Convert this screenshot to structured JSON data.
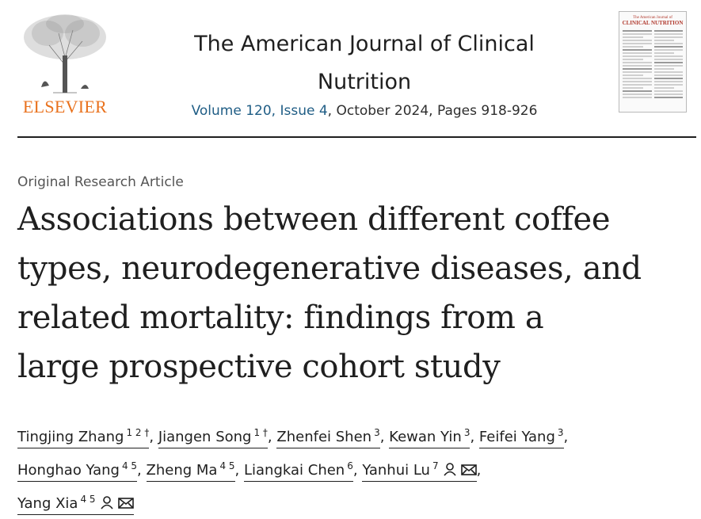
{
  "header": {
    "publisher": "ELSEVIER",
    "journal_title_line1": "The American Journal of Clinical",
    "journal_title_line2": "Nutrition",
    "volume_issue": "Volume 120, Issue 4",
    "date_pages": ", October 2024, Pages 918-926",
    "cover_small": "The American Journal of",
    "cover_name": "CLINICAL NUTRITION"
  },
  "article": {
    "type": "Original Research Article",
    "title_lines": [
      "Associations between different coffee",
      "types, neurodegenerative diseases, and",
      "related mortality: findings from a",
      "large prospective cohort study"
    ]
  },
  "authors": [
    {
      "name": "Tingjing Zhang",
      "sup": "1 2 †",
      "sep": ","
    },
    {
      "name": "Jiangen Song",
      "sup": "1 †",
      "sep": ","
    },
    {
      "name": "Zhenfei Shen",
      "sup": "3",
      "sep": ","
    },
    {
      "name": "Kewan Yin",
      "sup": "3",
      "sep": ","
    },
    {
      "name": "Feifei Yang",
      "sup": "3",
      "sep": ","
    },
    {
      "name": "Honghao Yang",
      "sup": "4 5",
      "sep": ","
    },
    {
      "name": "Zheng Ma",
      "sup": "4 5",
      "sep": ","
    },
    {
      "name": "Liangkai Chen",
      "sup": "6",
      "sep": ","
    },
    {
      "name": "Yanhui Lu",
      "sup": "7",
      "sep": ",",
      "icons": [
        "person-icon",
        "mail-icon"
      ]
    },
    {
      "name": "Yang Xia",
      "sup": "4 5",
      "sep": "",
      "icons": [
        "person-icon",
        "mail-icon"
      ]
    }
  ],
  "colors": {
    "publisher_orange": "#e9711c",
    "link_blue": "#1f5d85",
    "text": "#1f1f1f"
  }
}
